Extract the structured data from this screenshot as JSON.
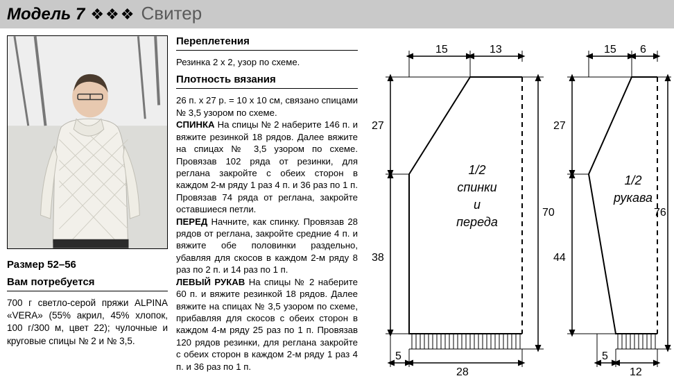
{
  "header": {
    "model_label": "Модель 7",
    "decor": "❖❖❖",
    "title": "Свитер"
  },
  "size": "Размер 52–56",
  "need_header": "Вам потребуется",
  "materials": "700 г светло-серой пряжи ALPINA «VERA» (55% акрил, 45% хлопок, 100 г/300 м, цвет 22); чулочные и круговые спицы № 2 и № 3,5.",
  "sec_weave_hdr": "Переплетения",
  "sec_weave_body": "Резинка 2 х 2, узор по схеме.",
  "sec_gauge_hdr": "Плотность вязания",
  "instructions": "26 п. х 27 р. = 10 х 10 см, связано спицами № 3,5 узором по схеме.<br><b>СПИНКА</b> На спицы № 2 наберите 146 п. и вяжите резинкой 18 рядов. Далее вяжите на спицах № 3,5 узором по схеме. Провязав 102 ряда от резинки, для реглана закройте с обеих сторон в каждом 2-м ряду 1 раз 4 п. и 36 раз по 1 п. Провязав 74 ряда от реглана, закройте оставшиеся петли.<br><b>ПЕРЕД</b> Начните, как спинку. Провязав 28 рядов от реглана, закройте средние 4 п. и вяжите обе половинки раздельно, убавляя для скосов в каждом 2-м ряду 8 раз по 2 п. и 14 раз по 1 п.<br><b>ЛЕВЫЙ РУКАВ</b> На спицы № 2 наберите 60 п. и вяжите резинкой 18 рядов. Далее вяжите на спицах № 3,5 узором по схеме, прибавляя для скосов с обеих сторон в каждом 4-м ряду 25 раз по 1 п. Провязав 120 рядов резинки, для реглана закройте с обеих сторон в каждом 2-м ряду 1 раз 4 п. и 36 раз по 1 п.",
  "schematic": {
    "body": {
      "label1": "1/2",
      "label2": "спинки",
      "label3": "и",
      "label4": "переда",
      "dims": {
        "top_neck": "15",
        "top_shoulder": "13",
        "side_upper": "27",
        "side_lower": "38",
        "full_height": "70",
        "hem_left": "5",
        "hem_width": "28"
      },
      "stroke": "#000000",
      "fill": "#ffffff"
    },
    "sleeve": {
      "label1": "1/2",
      "label2": "рукава",
      "dims": {
        "top_main": "15",
        "top_cap": "6",
        "side_cap": "27",
        "side_body": "44",
        "full_height": "76",
        "hem_left": "5",
        "hem_width": "12"
      },
      "stroke": "#000000",
      "fill": "#ffffff"
    },
    "arrow_color": "#000000",
    "dim_fontsize": 16,
    "label_fontsize": 18
  }
}
